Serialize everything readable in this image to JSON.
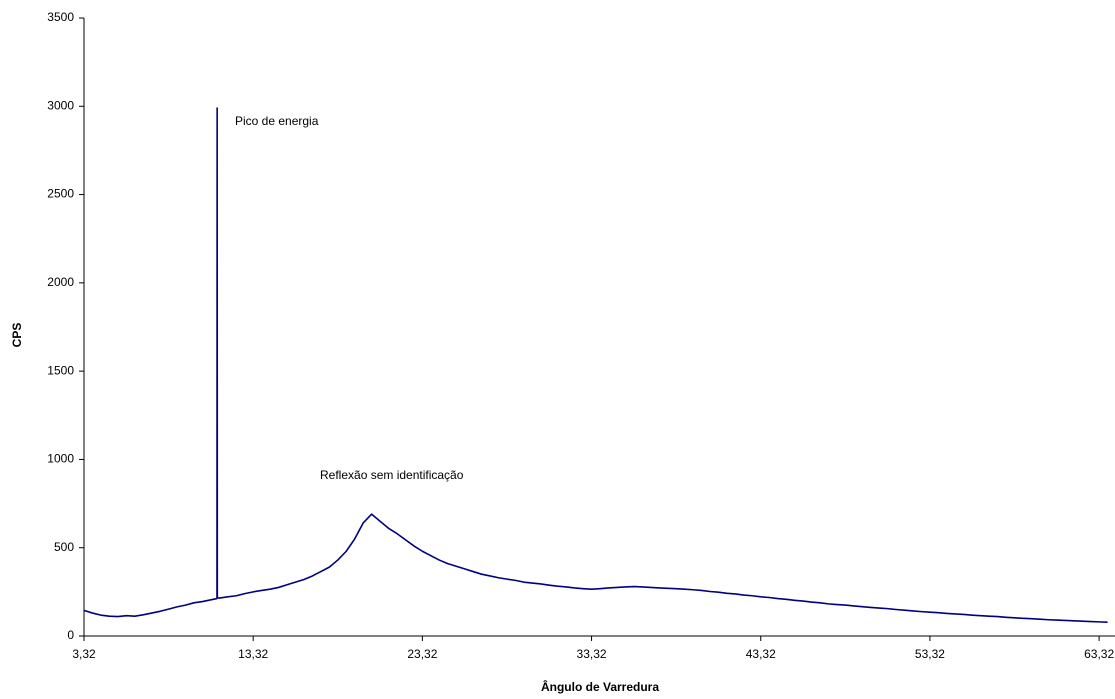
{
  "chart_data": {
    "type": "line",
    "x_label": "Ângulo de Varredura",
    "y_label": "CPS",
    "annotations": [
      "Pico de energia",
      "Reflexão sem identificação"
    ],
    "xlim": [
      3.32,
      64.2
    ],
    "ylim": [
      0,
      3500
    ],
    "xticks": [
      {
        "value": 3.32,
        "label": "3,32"
      },
      {
        "value": 13.32,
        "label": "13,32"
      },
      {
        "value": 23.32,
        "label": "23,32"
      },
      {
        "value": 33.32,
        "label": "33,32"
      },
      {
        "value": 43.32,
        "label": "43,32"
      },
      {
        "value": 53.32,
        "label": "53,32"
      },
      {
        "value": 63.32,
        "label": "63,32"
      }
    ],
    "yticks": [
      0,
      500,
      1000,
      1500,
      2000,
      2500,
      3000,
      3500
    ],
    "x": [
      3.32,
      3.82,
      4.32,
      4.82,
      5.32,
      5.82,
      6.32,
      6.82,
      7.32,
      7.82,
      8.32,
      8.82,
      9.32,
      9.82,
      10.32,
      10.82,
      11.18,
      11.19,
      11.2,
      11.32,
      11.82,
      12.32,
      12.82,
      13.32,
      13.82,
      14.32,
      14.82,
      15.32,
      15.82,
      16.32,
      16.82,
      17.32,
      17.82,
      18.32,
      18.82,
      19.32,
      19.82,
      20.32,
      20.82,
      21.32,
      21.82,
      22.32,
      22.82,
      23.32,
      23.82,
      24.32,
      24.82,
      25.32,
      25.82,
      26.32,
      26.82,
      27.32,
      27.82,
      28.32,
      28.82,
      29.32,
      29.82,
      30.32,
      30.82,
      31.32,
      31.82,
      32.32,
      32.82,
      33.32,
      33.82,
      34.32,
      34.82,
      35.32,
      35.82,
      36.32,
      36.82,
      37.32,
      37.82,
      38.32,
      38.82,
      39.32,
      39.82,
      40.32,
      40.82,
      41.32,
      41.82,
      42.32,
      42.82,
      43.32,
      43.82,
      44.32,
      44.82,
      45.32,
      45.82,
      46.32,
      46.82,
      47.32,
      47.82,
      48.32,
      48.82,
      49.32,
      49.82,
      50.32,
      50.82,
      51.32,
      51.82,
      52.32,
      52.82,
      53.32,
      53.82,
      54.32,
      54.82,
      55.32,
      55.82,
      56.32,
      56.82,
      57.32,
      57.82,
      58.32,
      58.82,
      59.32,
      59.82,
      60.32,
      60.82,
      61.32,
      61.82,
      62.32,
      62.82,
      63.32,
      63.82
    ],
    "series": [
      {
        "name": "CPS",
        "color": "#000080",
        "values": [
          145,
          130,
          118,
          112,
          110,
          115,
          112,
          120,
          130,
          140,
          152,
          165,
          175,
          188,
          195,
          205,
          212,
          2990,
          218,
          215,
          222,
          228,
          240,
          250,
          258,
          265,
          275,
          290,
          305,
          320,
          340,
          365,
          390,
          430,
          480,
          550,
          640,
          690,
          650,
          610,
          580,
          545,
          510,
          480,
          455,
          430,
          410,
          395,
          380,
          365,
          350,
          340,
          330,
          322,
          315,
          305,
          300,
          295,
          288,
          282,
          278,
          272,
          268,
          265,
          268,
          272,
          275,
          278,
          280,
          278,
          275,
          272,
          270,
          268,
          265,
          262,
          258,
          252,
          248,
          242,
          238,
          232,
          228,
          222,
          218,
          212,
          208,
          202,
          198,
          192,
          188,
          182,
          178,
          175,
          170,
          166,
          162,
          158,
          155,
          150,
          146,
          142,
          138,
          135,
          132,
          128,
          125,
          122,
          118,
          115,
          112,
          110,
          106,
          103,
          100,
          98,
          95,
          92,
          90,
          88,
          86,
          84,
          82,
          80,
          78
        ]
      }
    ]
  }
}
